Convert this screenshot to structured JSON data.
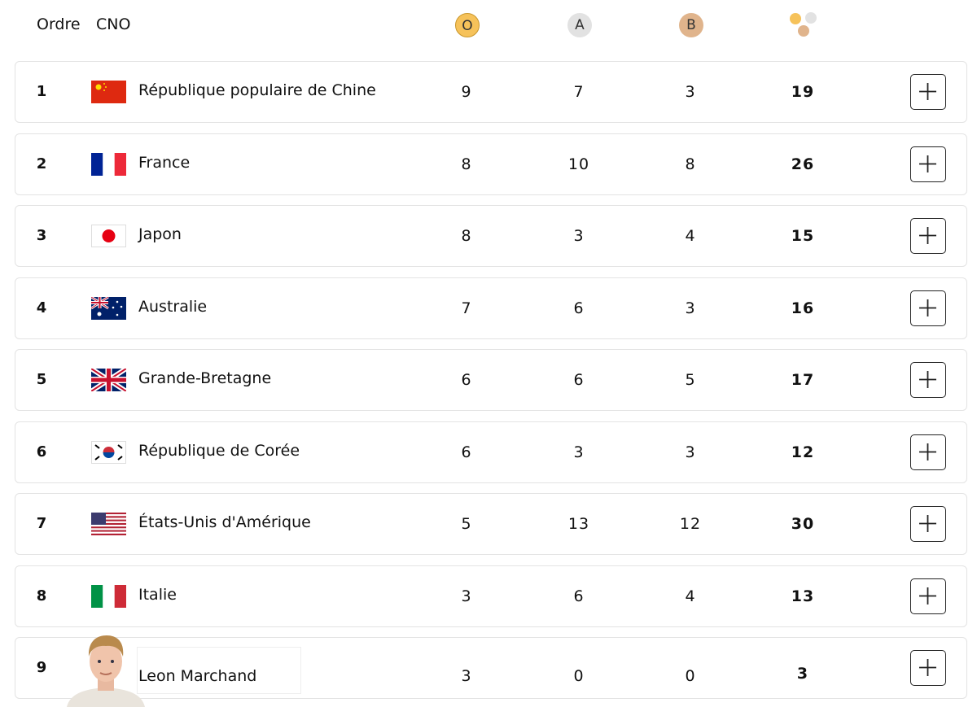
{
  "header": {
    "order": "Ordre",
    "noc": "CNO",
    "gold": "O",
    "silver": "A",
    "bronze": "B"
  },
  "rows": [
    {
      "rank": 1,
      "noc": "République populaire de Chine",
      "gold": 9,
      "silver": 7,
      "bronze": 3,
      "total": 19
    },
    {
      "rank": 2,
      "noc": "France",
      "gold": 8,
      "silver": 10,
      "bronze": 8,
      "total": 26
    },
    {
      "rank": 3,
      "noc": "Japon",
      "gold": 8,
      "silver": 3,
      "bronze": 4,
      "total": 15
    },
    {
      "rank": 4,
      "noc": "Australie",
      "gold": 7,
      "silver": 6,
      "bronze": 3,
      "total": 16
    },
    {
      "rank": 5,
      "noc": "Grande-Bretagne",
      "gold": 6,
      "silver": 6,
      "bronze": 5,
      "total": 17
    },
    {
      "rank": 6,
      "noc": "République de Corée",
      "gold": 6,
      "silver": 3,
      "bronze": 3,
      "total": 12
    },
    {
      "rank": 7,
      "noc": "États-Unis d'Amérique",
      "gold": 5,
      "silver": 13,
      "bronze": 12,
      "total": 30
    },
    {
      "rank": 8,
      "noc": "Italie",
      "gold": 3,
      "silver": 6,
      "bronze": 4,
      "total": 13
    },
    {
      "rank": 9,
      "noc": "Leon Marchand",
      "gold": 3,
      "silver": 0,
      "bronze": 0,
      "total": 3
    }
  ]
}
